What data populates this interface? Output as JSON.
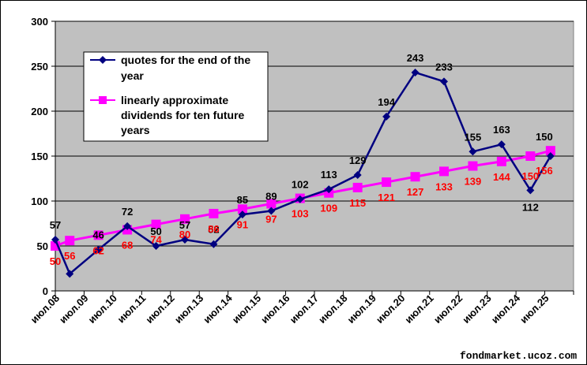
{
  "chart_data": {
    "type": "line",
    "categories": [
      "июл.08",
      "июл.09",
      "июл.10",
      "июл.11",
      "июл.12",
      "июл.13",
      "июл.14",
      "июл.15",
      "июл.16",
      "июл.17",
      "июл.18",
      "июл.19",
      "июл.20",
      "июл.21",
      "июл.22",
      "июл.23",
      "июл.24",
      "июл.25"
    ],
    "x": [
      0,
      0.5,
      1.5,
      2.5,
      3.5,
      4.5,
      5.5,
      6.5,
      7.5,
      8.5,
      9.5,
      10.5,
      11.5,
      12.5,
      13.5,
      14.5,
      15.5,
      16.5,
      17.2
    ],
    "ylim": [
      0,
      300
    ],
    "yticks": [
      0,
      50,
      100,
      150,
      200,
      250,
      300
    ],
    "grid": true,
    "legend_position": "top-left",
    "series": [
      {
        "name": "quotes for the end of the year",
        "color": "#000080",
        "marker": "diamond",
        "values": [
          57,
          19,
          46,
          72,
          50,
          57,
          52,
          85,
          89,
          102,
          113,
          129,
          194,
          243,
          233,
          155,
          163,
          112,
          150
        ],
        "labels": [
          "57",
          "",
          "46",
          "72",
          "50",
          "57",
          "52",
          "85",
          "89",
          "102",
          "113",
          "129",
          "194",
          "243",
          "233",
          "155",
          "163",
          "112",
          "150"
        ]
      },
      {
        "name": "linearly approximate dividends for ten future years",
        "color": "#ff00ff",
        "marker": "square",
        "values": [
          50,
          56,
          62,
          68,
          74,
          80,
          86,
          91,
          97,
          103,
          109,
          115,
          121,
          127,
          133,
          139,
          144,
          150,
          156
        ],
        "labels": [
          "50",
          "56",
          "62",
          "68",
          "74",
          "80",
          "86",
          "91",
          "97",
          "103",
          "109",
          "115",
          "121",
          "127",
          "133",
          "139",
          "144",
          "150",
          "156"
        ]
      }
    ]
  },
  "legend": {
    "quotes_line1": "quotes for the end of the",
    "quotes_line2": "year",
    "div_line1": "linearly approximate",
    "div_line2": "dividends for ten future",
    "div_line3": "years"
  },
  "credit": "fondmarket.ucoz.com"
}
